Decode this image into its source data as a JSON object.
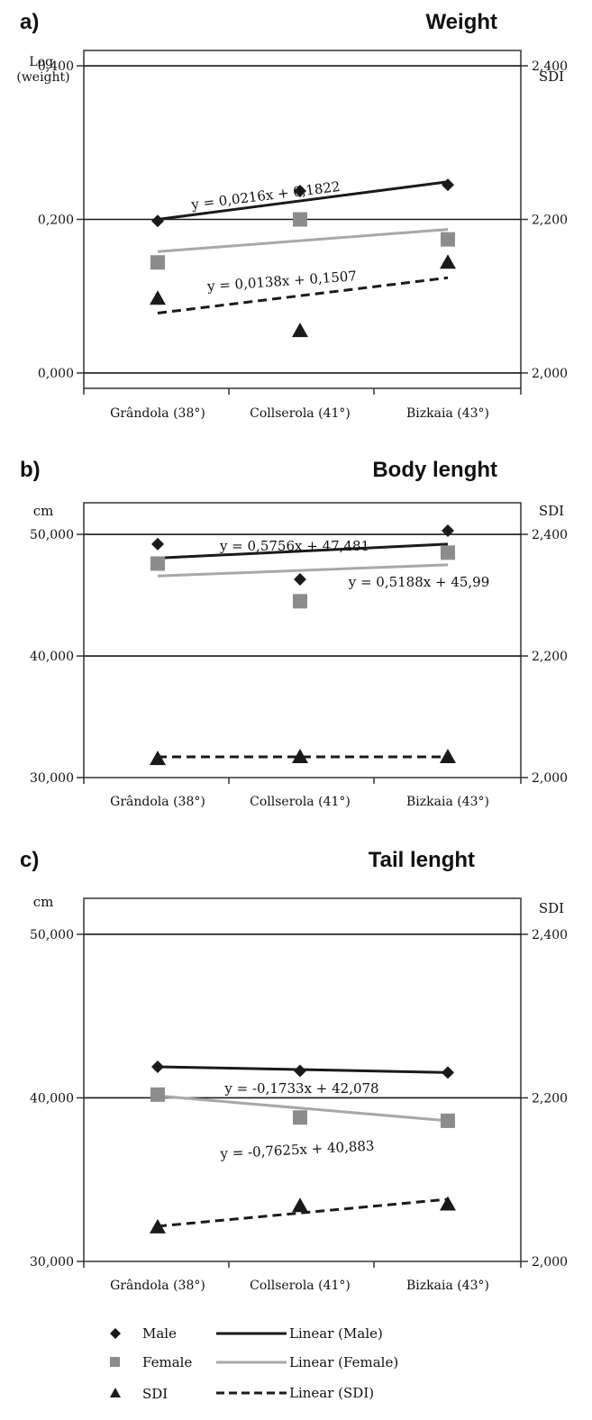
{
  "chart_data": [
    {
      "type": "scatter",
      "panel": "a)",
      "title": "Weight",
      "ylabel_left": "Log (weight)",
      "ylabel_right": "SDI",
      "ylim_left": [
        -0.02,
        0.42
      ],
      "ylim_right": [
        1.98,
        2.42
      ],
      "yticks_left": [
        "0,000",
        "0,200",
        "0,400"
      ],
      "yticks_right": [
        "2,000",
        "2,200",
        "2,400"
      ],
      "categories": [
        "Grândola (38°)",
        "Collserola (41°)",
        "Bizkaia (43°)"
      ],
      "grid": "horizontal at 0,200 and 0,400",
      "series": [
        {
          "name": "Male",
          "axis": "left",
          "marker": "diamond",
          "values": [
            0.198,
            0.237,
            0.245
          ]
        },
        {
          "name": "Female",
          "axis": "left",
          "marker": "square",
          "values": [
            0.144,
            0.2,
            0.174
          ]
        },
        {
          "name": "SDI",
          "axis": "right",
          "marker": "triangle",
          "values": [
            2.097,
            2.055,
            2.144
          ]
        }
      ],
      "trendlines": [
        {
          "name": "Linear (Male)",
          "style": "solid-dark",
          "start": 0.2,
          "end": 0.249,
          "label": "y = 0,0216x + 0,1822"
        },
        {
          "name": "Linear (Female)",
          "style": "solid-grey",
          "start": 0.158,
          "end": 0.187,
          "label": "y = 0,0138x + 0,1507"
        },
        {
          "name": "Linear (SDI)",
          "style": "dashed",
          "axis": "right",
          "start": 2.078,
          "end": 2.124,
          "label": ""
        }
      ]
    },
    {
      "type": "scatter",
      "panel": "b)",
      "title": "Body lenght",
      "ylabel_left": "cm",
      "ylabel_right": "SDI",
      "ylim_left": [
        30,
        52.6
      ],
      "ylim_right": [
        2.0,
        2.452
      ],
      "yticks_left": [
        "30,000",
        "40,000",
        "50,000"
      ],
      "yticks_right": [
        "2,000",
        "2,200",
        "2,400"
      ],
      "categories": [
        "Grândola (38°)",
        "Collserola (41°)",
        "Bizkaia (43°)"
      ],
      "grid": "horizontal at 40,000 and 50,000",
      "series": [
        {
          "name": "Male",
          "axis": "left",
          "marker": "diamond",
          "values": [
            49.2,
            46.3,
            50.3
          ]
        },
        {
          "name": "Female",
          "axis": "left",
          "marker": "square",
          "values": [
            47.6,
            44.5,
            48.5
          ]
        },
        {
          "name": "SDI",
          "axis": "right",
          "marker": "triangle",
          "values": [
            2.031,
            2.034,
            2.034
          ]
        }
      ],
      "trendlines": [
        {
          "name": "Linear (Male)",
          "style": "solid-dark",
          "start": 48.05,
          "end": 49.2,
          "label": "y = 0,5756x + 47,481"
        },
        {
          "name": "Linear (Female)",
          "style": "solid-grey",
          "start": 46.58,
          "end": 47.5,
          "label": "y = 0,5188x + 45,99"
        },
        {
          "name": "Linear (SDI)",
          "style": "dashed",
          "axis": "right",
          "start": 2.034,
          "end": 2.034,
          "label": ""
        }
      ]
    },
    {
      "type": "scatter",
      "panel": "c)",
      "title": "Tail lenght",
      "ylabel_left": "cm",
      "ylabel_right": "SDI",
      "ylim_left": [
        30,
        52.2
      ],
      "ylim_right": [
        2.0,
        2.444
      ],
      "yticks_left": [
        "30,000",
        "40,000",
        "50,000"
      ],
      "yticks_right": [
        "2,000",
        "2,200",
        "2,400"
      ],
      "categories": [
        "Grândola (38°)",
        "Collserola (41°)",
        "Bizkaia (43°)"
      ],
      "grid": "horizontal at 40,000 and 50,000",
      "series": [
        {
          "name": "Male",
          "axis": "left",
          "marker": "diamond",
          "values": [
            41.9,
            41.65,
            41.55
          ]
        },
        {
          "name": "Female",
          "axis": "left",
          "marker": "square",
          "values": [
            40.2,
            38.8,
            38.6
          ]
        },
        {
          "name": "SDI",
          "axis": "right",
          "marker": "triangle",
          "values": [
            2.042,
            2.068,
            2.07
          ]
        }
      ],
      "trendlines": [
        {
          "name": "Linear (Male)",
          "style": "solid-dark",
          "start": 41.9,
          "end": 41.55,
          "label": "y = -0,1733x + 42,078"
        },
        {
          "name": "Linear (Female)",
          "style": "solid-grey",
          "start": 40.12,
          "end": 38.6,
          "label": "y = -0,7625x + 40,883"
        },
        {
          "name": "Linear (SDI)",
          "style": "dashed",
          "axis": "right",
          "start": 2.043,
          "end": 2.076,
          "label": ""
        }
      ]
    }
  ],
  "legend": {
    "placement": "bottom",
    "markers": [
      "Male",
      "Female",
      "SDI"
    ],
    "lines": [
      "Linear (Male)",
      "Linear (Female)",
      "Linear (SDI)"
    ]
  },
  "colors": {
    "male": "#1a1a1a",
    "female": "#8c8c8c",
    "female_line": "#a8a8a8",
    "sdi": "#1a1a1a",
    "grid": "#1a1a1a",
    "axis": "#333333"
  }
}
